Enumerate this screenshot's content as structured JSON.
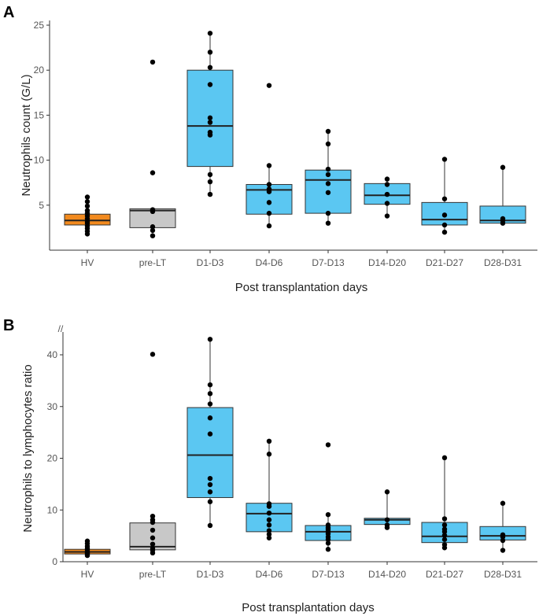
{
  "chart_data": [
    {
      "panel": "A",
      "type": "box",
      "xlabel": "Post transplantation days",
      "ylabel": "Neutrophils count (G/L)",
      "ylim": [
        0,
        25
      ],
      "yticks": [
        5,
        10,
        15,
        20,
        25
      ],
      "categories": [
        "HV",
        "pre-LT",
        "D1-D3",
        "D4-D6",
        "D7-D13",
        "D14-D20",
        "D21-D27",
        "D28-D31"
      ],
      "colors": [
        "#f28a1e",
        "#c8c8c8",
        "#5bc7f2",
        "#5bc7f2",
        "#5bc7f2",
        "#5bc7f2",
        "#5bc7f2",
        "#5bc7f2"
      ],
      "boxes": [
        {
          "q1": 2.8,
          "median": 3.3,
          "q3": 4.0,
          "wlow": 1.8,
          "whigh": 5.9
        },
        {
          "q1": 2.5,
          "median": 4.4,
          "q3": 4.6,
          "wlow": 1.6,
          "whigh": 4.6
        },
        {
          "q1": 9.3,
          "median": 13.8,
          "q3": 20.0,
          "wlow": 6.2,
          "whigh": 24.1
        },
        {
          "q1": 4.0,
          "median": 6.7,
          "q3": 7.3,
          "wlow": 2.7,
          "whigh": 9.4
        },
        {
          "q1": 4.1,
          "median": 7.8,
          "q3": 8.9,
          "wlow": 3.0,
          "whigh": 13.2
        },
        {
          "q1": 5.1,
          "median": 6.1,
          "q3": 7.4,
          "wlow": 3.8,
          "whigh": 7.9
        },
        {
          "q1": 2.8,
          "median": 3.4,
          "q3": 5.3,
          "wlow": 2.0,
          "whigh": 10.1
        },
        {
          "q1": 3.0,
          "median": 3.3,
          "q3": 4.9,
          "wlow": 3.0,
          "whigh": 9.2
        }
      ],
      "points": [
        [
          1.8,
          2.1,
          2.4,
          2.7,
          3.0,
          3.2,
          3.5,
          3.8,
          4.1,
          4.4,
          4.9,
          5.4,
          5.9
        ],
        [
          1.6,
          2.2,
          2.6,
          4.3,
          4.5,
          8.6,
          20.9
        ],
        [
          6.2,
          7.6,
          8.4,
          12.8,
          13.1,
          14.2,
          14.7,
          18.4,
          20.3,
          22.0,
          24.1
        ],
        [
          2.7,
          4.1,
          5.3,
          6.5,
          6.8,
          7.3,
          9.4,
          18.3
        ],
        [
          3.0,
          4.1,
          6.4,
          7.4,
          8.4,
          9.0,
          11.8,
          13.2
        ],
        [
          3.8,
          5.2,
          6.2,
          7.3,
          7.9
        ],
        [
          2.0,
          2.8,
          3.9,
          5.7,
          10.1
        ],
        [
          3.0,
          3.3,
          3.5,
          9.2
        ]
      ]
    },
    {
      "panel": "B",
      "type": "box",
      "xlabel": "Post transplantation days",
      "ylabel": "Neutrophils to lymphocytes ratio",
      "ylim": [
        0,
        43.5
      ],
      "yticks": [
        0,
        10,
        20,
        30,
        40
      ],
      "axis_break": "//",
      "categories": [
        "HV",
        "pre-LT",
        "D1-D3",
        "D4-D6",
        "D7-D13",
        "D14-D20",
        "D21-D27",
        "D28-D31"
      ],
      "colors": [
        "#f28a1e",
        "#c8c8c8",
        "#5bc7f2",
        "#5bc7f2",
        "#5bc7f2",
        "#5bc7f2",
        "#5bc7f2",
        "#5bc7f2"
      ],
      "boxes": [
        {
          "q1": 1.5,
          "median": 1.9,
          "q3": 2.4,
          "wlow": 1.2,
          "whigh": 4.0
        },
        {
          "q1": 2.3,
          "median": 2.9,
          "q3": 7.5,
          "wlow": 1.7,
          "whigh": 8.8
        },
        {
          "q1": 12.4,
          "median": 20.6,
          "q3": 29.8,
          "wlow": 7.0,
          "whigh": 43.0
        },
        {
          "q1": 5.8,
          "median": 9.3,
          "q3": 11.3,
          "wlow": 4.6,
          "whigh": 23.3
        },
        {
          "q1": 4.1,
          "median": 5.8,
          "q3": 7.0,
          "wlow": 2.4,
          "whigh": 9.1
        },
        {
          "q1": 7.2,
          "median": 8.1,
          "q3": 8.4,
          "wlow": 6.6,
          "whigh": 13.5
        },
        {
          "q1": 3.7,
          "median": 4.9,
          "q3": 7.6,
          "wlow": 2.7,
          "whigh": 20.1
        },
        {
          "q1": 4.2,
          "median": 5.0,
          "q3": 6.8,
          "wlow": 2.2,
          "whigh": 11.3
        }
      ],
      "points": [
        [
          1.2,
          1.4,
          1.6,
          1.8,
          2.0,
          2.3,
          2.6,
          3.0,
          3.5,
          4.0
        ],
        [
          1.7,
          2.2,
          2.6,
          3.4,
          4.6,
          6.1,
          7.6,
          8.1,
          8.8,
          40.1
        ],
        [
          7.0,
          11.6,
          13.5,
          14.9,
          16.1,
          24.7,
          27.8,
          30.5,
          32.5,
          34.2,
          43.0
        ],
        [
          4.6,
          5.3,
          6.0,
          7.1,
          8.1,
          9.4,
          10.7,
          11.2,
          20.8,
          23.3
        ],
        [
          2.4,
          3.6,
          4.3,
          4.8,
          5.4,
          5.9,
          6.3,
          6.6,
          7.1,
          9.1,
          22.6
        ],
        [
          6.6,
          7.1,
          8.1,
          13.5
        ],
        [
          2.7,
          3.3,
          4.3,
          5.1,
          5.8,
          6.3,
          7.1,
          8.3,
          20.1
        ],
        [
          2.2,
          4.1,
          4.8,
          5.2,
          11.3
        ]
      ]
    }
  ]
}
